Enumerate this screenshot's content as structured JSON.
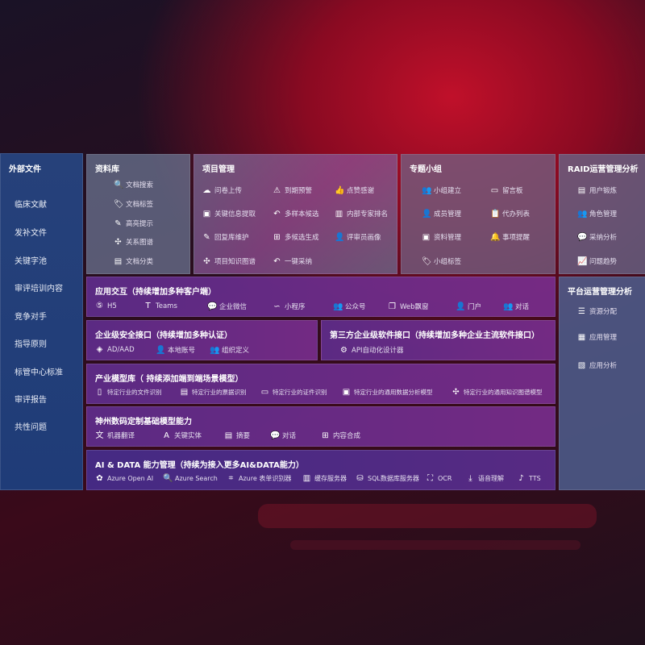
{
  "sidebar": {
    "title": "外部文件",
    "items": [
      "临床文献",
      "发补文件",
      "关键字池",
      "审评培训内容",
      "竞争对手",
      "指导原则",
      "标管中心标准",
      "审评报告",
      "共性问题"
    ]
  },
  "library": {
    "title": "资料库",
    "items": [
      {
        "label": "文档搜索",
        "icon": "doc-search-icon"
      },
      {
        "label": "文档标签",
        "icon": "tag-icon"
      },
      {
        "label": "高亮提示",
        "icon": "pen-icon"
      },
      {
        "label": "关系图谱",
        "icon": "graph-icon"
      },
      {
        "label": "文档分类",
        "icon": "doc-category-icon"
      }
    ]
  },
  "project": {
    "title": "项目管理",
    "items": [
      {
        "label": "问卷上传",
        "icon": "cloud-upload-icon"
      },
      {
        "label": "到期预警",
        "icon": "alarm-icon"
      },
      {
        "label": "点赞感谢",
        "icon": "thumbs-up-icon"
      },
      {
        "label": "关键信息提取",
        "icon": "window-icon"
      },
      {
        "label": "多样本候选",
        "icon": "reply-icon"
      },
      {
        "label": "内部专家排名",
        "icon": "ranking-icon"
      },
      {
        "label": "回复库维护",
        "icon": "edit-icon"
      },
      {
        "label": "多候选生成",
        "icon": "puzzle-icon"
      },
      {
        "label": "评审员画像",
        "icon": "user-icon"
      },
      {
        "label": "项目知识图谱",
        "icon": "graph-icon"
      },
      {
        "label": "一键采纳",
        "icon": "reply-icon"
      }
    ]
  },
  "group": {
    "title": "专题小组",
    "items": [
      {
        "label": "小组建立",
        "icon": "users-icon"
      },
      {
        "label": "留言板",
        "icon": "bbs-icon"
      },
      {
        "label": "成员管理",
        "icon": "user-add-icon"
      },
      {
        "label": "代办列表",
        "icon": "clipboard-icon"
      },
      {
        "label": "资料管理",
        "icon": "folder-icon"
      },
      {
        "label": "事项提醒",
        "icon": "bell-icon"
      },
      {
        "label": "小组标签",
        "icon": "tag-icon"
      }
    ]
  },
  "raid": {
    "title": "RAID运营管理分析",
    "items": [
      {
        "label": "用户锻炼",
        "icon": "id-card-icon"
      },
      {
        "label": "角色管理",
        "icon": "users-icon"
      },
      {
        "label": "采纳分析",
        "icon": "qa-icon"
      },
      {
        "label": "问题趋势",
        "icon": "trend-icon"
      }
    ]
  },
  "platform": {
    "title": "平台运营管理分析",
    "items": [
      {
        "label": "资源分配",
        "icon": "list-icon"
      },
      {
        "label": "应用管理",
        "icon": "apps-icon"
      },
      {
        "label": "应用分析",
        "icon": "chart-icon"
      }
    ]
  },
  "interaction": {
    "title": "应用交互（持续增加多种客户端）",
    "items": [
      {
        "label": "H5",
        "icon": "html5-icon"
      },
      {
        "label": "Teams",
        "icon": "teams-icon"
      },
      {
        "label": "企业微信",
        "icon": "wechat-icon"
      },
      {
        "label": "小程序",
        "icon": "mini-program-icon"
      },
      {
        "label": "公众号",
        "icon": "users-icon"
      },
      {
        "label": "Web飘窗",
        "icon": "window-icon"
      },
      {
        "label": "门户",
        "icon": "portal-icon"
      },
      {
        "label": "对话",
        "icon": "chat-users-icon"
      }
    ]
  },
  "security": {
    "title": "企业级安全接口（持续增加多种认证）",
    "items": [
      {
        "label": "AD/AAD",
        "icon": "diamond-icon"
      },
      {
        "label": "本地账号",
        "icon": "user-icon"
      },
      {
        "label": "组织定义",
        "icon": "org-icon"
      }
    ]
  },
  "third": {
    "title": "第三方企业级软件接口（持续增加多种企业主流软件接口）",
    "items": [
      {
        "label": "API自动化设计器",
        "icon": "gear-icon"
      }
    ]
  },
  "industry": {
    "title": "产业模型库（ 持续添加端到端场景模型）",
    "items": [
      {
        "label": "特定行业的文件识别",
        "icon": "file-icon"
      },
      {
        "label": "特定行业的票据识别",
        "icon": "receipt-icon"
      },
      {
        "label": "特定行业的证件识别",
        "icon": "id-card-icon"
      },
      {
        "label": "特定行业的通用数据分析模型",
        "icon": "image-icon"
      },
      {
        "label": "特定行业的通用知识图谱模型",
        "icon": "graph-icon"
      }
    ]
  },
  "base": {
    "title": "神州数码定制基础模型能力",
    "items": [
      {
        "label": "机器翻译",
        "icon": "translate-icon"
      },
      {
        "label": "关键实体",
        "icon": "entity-icon"
      },
      {
        "label": "摘要",
        "icon": "doc-icon"
      },
      {
        "label": "对话",
        "icon": "chat-icon"
      },
      {
        "label": "内容合成",
        "icon": "puzzle-icon"
      }
    ]
  },
  "ai": {
    "title": "AI & DATA 能力管理（持续为接入更多AI&DATA能力）",
    "items": [
      {
        "label": "Azure Open AI",
        "icon": "openai-icon"
      },
      {
        "label": "Azure Search",
        "icon": "search-icon"
      },
      {
        "label": "Azure 表单识别器",
        "icon": "form-icon"
      },
      {
        "label": "缓存服务器",
        "icon": "server-icon"
      },
      {
        "label": "SQL数据库服务器",
        "icon": "database-icon"
      },
      {
        "label": "OCR",
        "icon": "ocr-icon"
      },
      {
        "label": "语音理解",
        "icon": "download-icon"
      },
      {
        "label": "TTS",
        "icon": "tts-icon"
      }
    ]
  }
}
